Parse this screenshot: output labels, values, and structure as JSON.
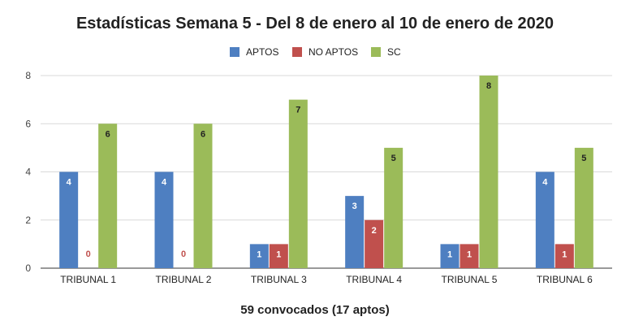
{
  "chart_data": {
    "type": "bar",
    "title": "Estadísticas Semana 5 - Del 8 de enero al 10 de enero de 2020",
    "xlabel": "59 convocados (17 aptos)",
    "ylabel": "",
    "categories": [
      "TRIBUNAL 1",
      "TRIBUNAL 2",
      "TRIBUNAL 3",
      "TRIBUNAL 4",
      "TRIBUNAL 5",
      "TRIBUNAL 6"
    ],
    "series": [
      {
        "name": "APTOS",
        "color": "#4e7fc1",
        "values": [
          4,
          4,
          1,
          3,
          1,
          4
        ]
      },
      {
        "name": "NO APTOS",
        "color": "#c0504d",
        "values": [
          0,
          0,
          1,
          2,
          1,
          1
        ]
      },
      {
        "name": "SC",
        "color": "#9bbb59",
        "values": [
          6,
          6,
          7,
          5,
          8,
          5
        ]
      }
    ],
    "ylim": [
      0,
      8
    ],
    "yticks": [
      0,
      2,
      4,
      6,
      8
    ],
    "grid": true,
    "legend": "top-center",
    "data_labels": true
  }
}
